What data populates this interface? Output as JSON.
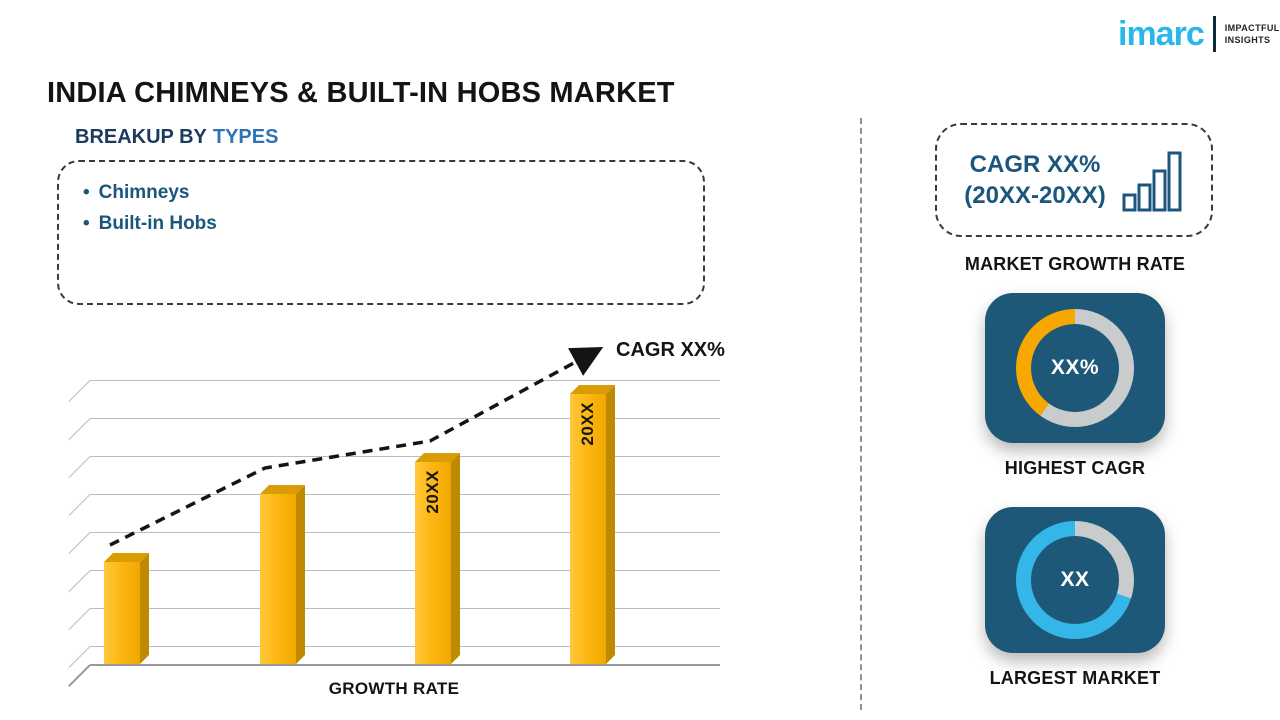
{
  "header": {
    "title": "INDIA CHIMNEYS & BUILT-IN HOBS MARKET"
  },
  "logo": {
    "brand": "imarc",
    "tagline_line1": "IMPACTFUL",
    "tagline_line2": "INSIGHTS"
  },
  "breakup": {
    "heading_prefix": "BREAKUP BY",
    "heading_highlight": "TYPES",
    "bullet": "•",
    "items": [
      "Chimneys",
      "Built-in Hobs"
    ]
  },
  "chart_data": {
    "type": "bar",
    "categories": [
      "",
      "",
      "20XX",
      "20XX"
    ],
    "values": [
      36,
      60,
      71,
      95
    ],
    "ylim": [
      0,
      100
    ],
    "value_note": "relative bar heights, no numeric axis shown",
    "bar_color": "#fcb713",
    "grid": true,
    "trend_label": "CAGR XX%",
    "xlabel": "GROWTH RATE"
  },
  "right_panel": {
    "growth_box": {
      "line1": "CAGR XX%",
      "line2": "(20XX-20XX)"
    },
    "market_growth_label": "MARKET GROWTH RATE",
    "highest_cagr": {
      "center_value": "XX%",
      "caption": "HIGHEST CAGR",
      "percent": 40,
      "segment_color": "#f6a700",
      "ring_base_color": "#c9cccd"
    },
    "largest_market": {
      "center_value": "XX",
      "caption": "LARGEST MARKET",
      "percent": 70,
      "segment_color": "#35b6e8",
      "ring_base_color": "#c9cccd"
    }
  },
  "colors": {
    "accent_navy": "#1e5878",
    "accent_blue": "#2e74b5",
    "text_blue": "#1b567d",
    "cyan": "#29b7e9"
  }
}
